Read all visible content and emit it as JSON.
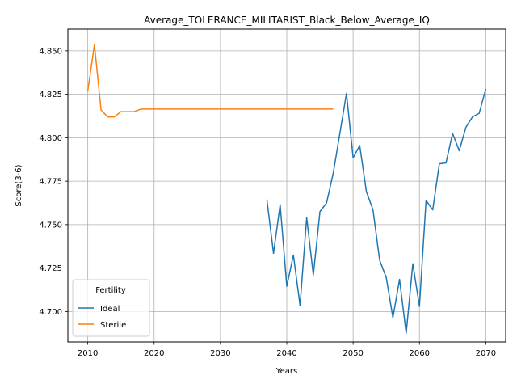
{
  "chart_data": {
    "type": "line",
    "title": "Average_TOLERANCE_MILITARIST_Black_Below_Average_IQ",
    "xlabel": "Years",
    "ylabel": "Score(3-6)",
    "xlim": [
      2007,
      2073
    ],
    "ylim": [
      4.6825,
      4.8625
    ],
    "xticks": [
      2010,
      2020,
      2030,
      2040,
      2050,
      2060,
      2070
    ],
    "yticks": [
      4.7,
      4.725,
      4.75,
      4.775,
      4.8,
      4.825,
      4.85
    ],
    "ytick_labels": [
      "4.700",
      "4.725",
      "4.750",
      "4.775",
      "4.800",
      "4.825",
      "4.850"
    ],
    "grid": true,
    "legend": {
      "title": "Fertility",
      "placement": "lower-left"
    },
    "series": [
      {
        "name": "Ideal",
        "color": "#1f77b4",
        "x": [
          2037,
          2038,
          2039,
          2040,
          2041,
          2042,
          2043,
          2044,
          2045,
          2046,
          2047,
          2048,
          2049,
          2050,
          2051,
          2052,
          2053,
          2054,
          2055,
          2056,
          2057,
          2058,
          2059,
          2060,
          2061,
          2062,
          2063,
          2064,
          2065,
          2066,
          2067,
          2068,
          2069,
          2070
        ],
        "y": [
          4.7645,
          4.7335,
          4.7615,
          4.7145,
          4.7325,
          4.7035,
          4.754,
          4.721,
          4.7575,
          4.7625,
          4.7795,
          4.8025,
          4.8255,
          4.7885,
          4.7955,
          4.769,
          4.7585,
          4.7295,
          4.7195,
          4.6965,
          4.7185,
          4.6875,
          4.7275,
          4.703,
          4.764,
          4.7585,
          4.785,
          4.7855,
          4.8025,
          4.7925,
          4.806,
          4.812,
          4.814,
          4.828
        ]
      },
      {
        "name": "Sterile",
        "color": "#ff7f0e",
        "x": [
          2010,
          2011,
          2012,
          2013,
          2014,
          2015,
          2016,
          2017,
          2018,
          2019,
          2020,
          2021,
          2022,
          2023,
          2024,
          2025,
          2026,
          2027,
          2028,
          2029,
          2030,
          2031,
          2032,
          2033,
          2034,
          2035,
          2036,
          2037,
          2038,
          2039,
          2040,
          2041,
          2042,
          2043,
          2044,
          2045,
          2046,
          2047
        ],
        "y": [
          4.827,
          4.8535,
          4.816,
          4.812,
          4.812,
          4.815,
          4.815,
          4.815,
          4.8165,
          4.8165,
          4.8165,
          4.8165,
          4.8165,
          4.8165,
          4.8165,
          4.8165,
          4.8165,
          4.8165,
          4.8165,
          4.8165,
          4.8165,
          4.8165,
          4.8165,
          4.8165,
          4.8165,
          4.8165,
          4.8165,
          4.8165,
          4.8165,
          4.8165,
          4.8165,
          4.8165,
          4.8165,
          4.8165,
          4.8165,
          4.8165,
          4.8165,
          4.8165
        ]
      }
    ]
  }
}
